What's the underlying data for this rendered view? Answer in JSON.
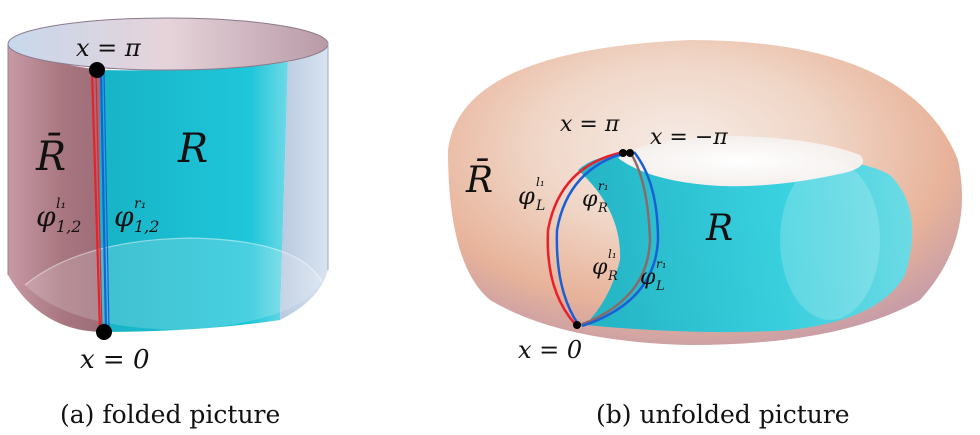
{
  "panel_a": {
    "x_top": "x = π",
    "x_bottom": "x = 0",
    "region_left": "R̄",
    "region_right": "R",
    "phi_red": "φ",
    "phi_red_sup": "l₁",
    "phi_red_sub": "1,2",
    "phi_blue": "φ",
    "phi_blue_sup": "r₁",
    "phi_blue_sub": "1,2",
    "caption": "(a) folded picture"
  },
  "panel_b": {
    "x_pi": "x = π",
    "x_minus_pi": "x = −π",
    "x_zero": "x = 0",
    "region_left": "R̄",
    "region_right": "R",
    "phi_L_l": "φ",
    "phi_L_l_sub": "L",
    "phi_L_l_sup": "l₁",
    "phi_R_r": "φ",
    "phi_R_r_sub": "R",
    "phi_R_r_sup": "r₁",
    "phi_R_l": "φ",
    "phi_R_l_sub": "R",
    "phi_R_l_sup": "l₁",
    "phi_L_r": "φ",
    "phi_L_r_sub": "L",
    "phi_L_r_sup": "r₁",
    "caption": "(b) unfolded picture"
  },
  "colors": {
    "red": "#e8202a",
    "blue": "#1a5fd6",
    "cyan": "#1fc3d8",
    "rose": "#b48a98",
    "dot": "#000000"
  }
}
